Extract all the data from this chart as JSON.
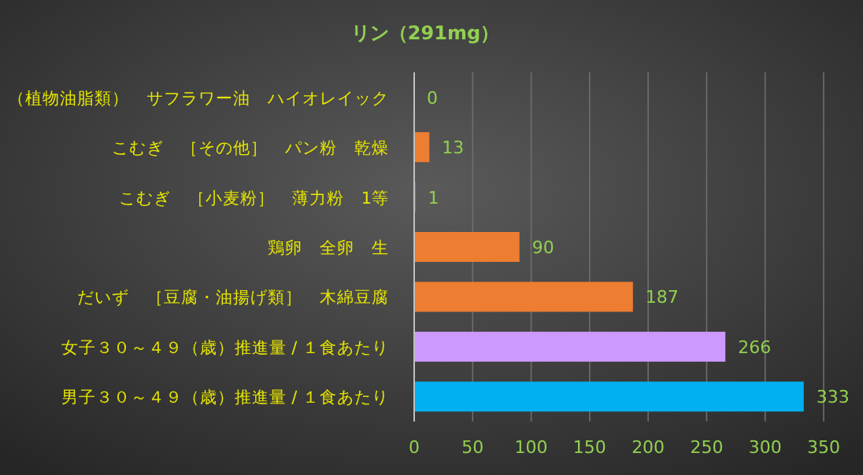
{
  "chart_data": {
    "type": "bar",
    "orientation": "horizontal",
    "title": "リン（291mg）",
    "categories": [
      "（植物油脂類）　サフラワー油　ハイオレイック",
      "こむぎ　［その他］　パン粉　乾燥",
      "こむぎ　［小麦粉］　薄力粉　1等",
      "鶏卵　全卵　生",
      "だいず　［豆腐・油揚げ類］　木綿豆腐",
      "女子３０～４９（歳）推進量 / １食あたり",
      "男子３０～４９（歳）推進量 / １食あたり"
    ],
    "values": [
      0,
      13,
      1,
      90,
      187,
      266,
      333
    ],
    "colors": [
      "#ed7d31",
      "#ed7d31",
      "#ed7d31",
      "#ed7d31",
      "#ed7d31",
      "#cc99ff",
      "#00b0f0"
    ],
    "xlim": [
      0,
      350
    ],
    "xticks": [
      0,
      50,
      100,
      150,
      200,
      250,
      300,
      350
    ],
    "grid": "x",
    "data_labels": true
  }
}
